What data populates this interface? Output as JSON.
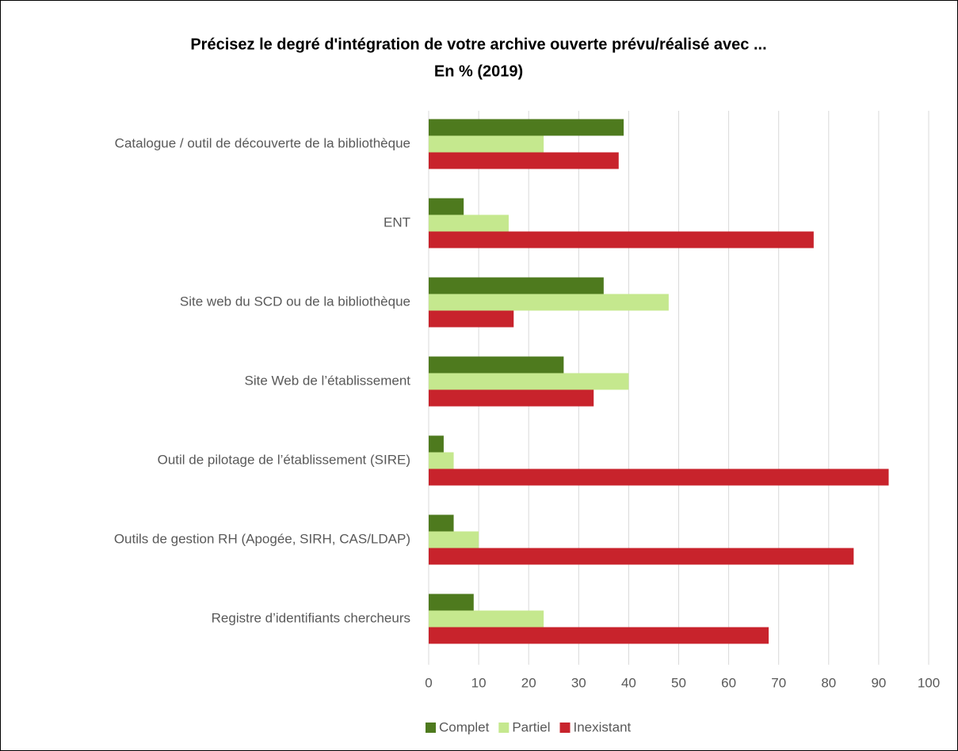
{
  "chart_data": {
    "type": "bar",
    "orientation": "horizontal",
    "title": "Précisez le degré d'intégration de votre archive ouverte prévu/réalisé avec ...",
    "subtitle": "En % (2019)",
    "categories": [
      "Catalogue / outil de découverte de la bibliothèque",
      "ENT",
      "Site web du SCD ou de la bibliothèque",
      "Site Web de l’établissement",
      "Outil de pilotage de l’établissement (SIRE)",
      "Outils de gestion RH (Apogée, SIRH, CAS/LDAP)",
      "Registre d’identifiants chercheurs"
    ],
    "series": [
      {
        "name": "Complet",
        "color": "#4e7a1e",
        "values": [
          39,
          7,
          35,
          27,
          3,
          5,
          9
        ]
      },
      {
        "name": "Partiel",
        "color": "#c5e88e",
        "values": [
          23,
          16,
          48,
          40,
          5,
          10,
          23
        ]
      },
      {
        "name": "Inexistant",
        "color": "#c8232c",
        "values": [
          38,
          77,
          17,
          33,
          92,
          85,
          68
        ]
      }
    ],
    "xlim": [
      0,
      100
    ],
    "xticks": [
      0,
      10,
      20,
      30,
      40,
      50,
      60,
      70,
      80,
      90,
      100
    ],
    "grid": true,
    "legend": "bottom"
  }
}
